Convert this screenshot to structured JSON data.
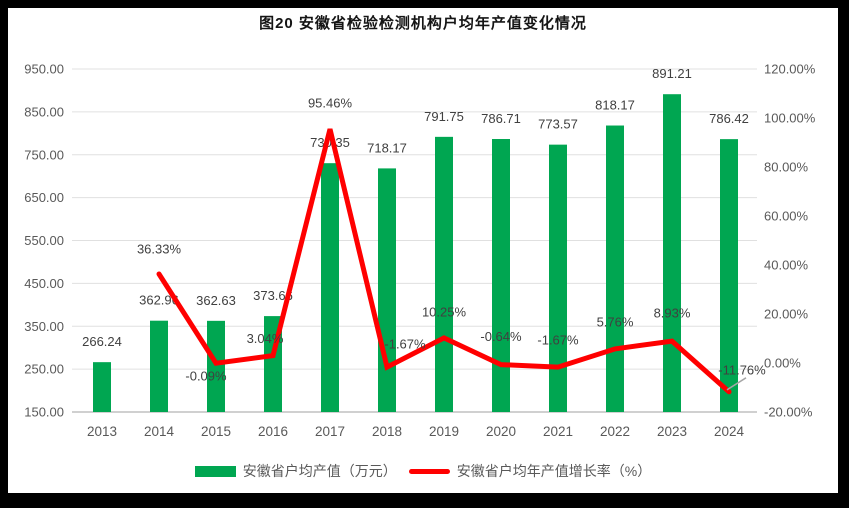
{
  "figure": {
    "title": "图20 安徽省检验检测机构户均年产值变化情况"
  },
  "legend": {
    "bar_label": "安徽省户均产值（万元）",
    "line_label": "安徽省户均年产值增长率（%）"
  },
  "colors": {
    "bar": "#00A651",
    "line": "#FF0000",
    "data_label": "#404040",
    "axis_label": "#595959",
    "gridline": "#E0E0E0",
    "axis_line": "#C0C0C0",
    "leader_line": "#A6A6A6",
    "frame": "#000000"
  },
  "chart_data": {
    "type": "bar",
    "combo": "bar+line",
    "title": "图20 安徽省检验检测机构户均年产值变化情况",
    "categories": [
      "2013",
      "2014",
      "2015",
      "2016",
      "2017",
      "2018",
      "2019",
      "2020",
      "2021",
      "2022",
      "2023",
      "2024"
    ],
    "series": [
      {
        "name": "安徽省户均产值（万元）",
        "type": "bar",
        "axis": "left",
        "color": "#00A651",
        "values": [
          266.24,
          362.96,
          362.63,
          373.66,
          730.35,
          718.17,
          791.75,
          786.71,
          773.57,
          818.17,
          891.21,
          786.42
        ],
        "labels": [
          "266.24",
          "362.96",
          "362.63",
          "373.66",
          "730.35",
          "718.17",
          "791.75",
          "786.71",
          "773.57",
          "818.17",
          "891.21",
          "786.42"
        ]
      },
      {
        "name": "安徽省户均年产值增长率（%）",
        "type": "line",
        "axis": "right",
        "color": "#FF0000",
        "values": [
          null,
          36.33,
          -0.09,
          3.04,
          95.46,
          -1.67,
          10.25,
          -0.64,
          -1.67,
          5.76,
          8.93,
          -11.76
        ],
        "labels": [
          null,
          "36.33%",
          "-0.09%",
          "3.04%",
          "95.46%",
          "-1.67%",
          "10.25%",
          "-0.64%",
          "-1.67%",
          "5.76%",
          "8.93%",
          "-11.76%"
        ]
      }
    ],
    "left_axis": {
      "min": 150,
      "max": 950,
      "step": 100,
      "ticks": [
        "950.00",
        "850.00",
        "750.00",
        "650.00",
        "550.00",
        "450.00",
        "350.00",
        "250.00",
        "150.00"
      ]
    },
    "right_axis": {
      "min": -20,
      "max": 120,
      "step": 20,
      "ticks": [
        "120.00%",
        "100.00%",
        "80.00%",
        "60.00%",
        "40.00%",
        "20.00%",
        "0.00%",
        "-20.00%"
      ]
    },
    "grid": true,
    "legend_position": "bottom"
  }
}
